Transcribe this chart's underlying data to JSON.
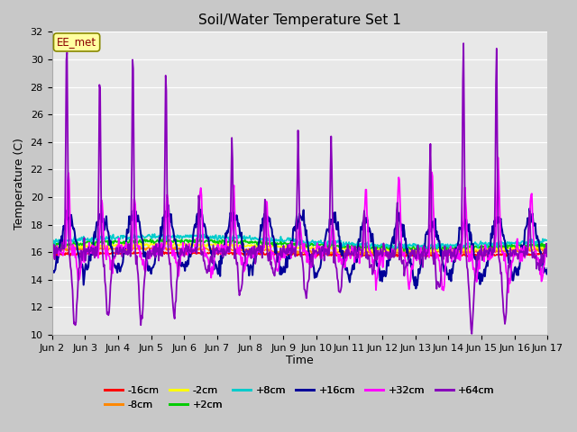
{
  "title": "Soil/Water Temperature Set 1",
  "xlabel": "Time",
  "ylabel": "Temperature (C)",
  "ylim": [
    10,
    32
  ],
  "yticks": [
    10,
    12,
    14,
    16,
    18,
    20,
    22,
    24,
    26,
    28,
    30,
    32
  ],
  "x_labels": [
    "Jun 2",
    "Jun 3",
    "Jun 4",
    "Jun 5",
    "Jun 6",
    "Jun 7",
    "Jun 8",
    "Jun 9",
    "Jun 10",
    "Jun 11",
    "Jun 12",
    "Jun 13",
    "Jun 14",
    "Jun 15",
    "Jun 16",
    "Jun 17"
  ],
  "n_days": 15,
  "legend_title": "EE_met",
  "series": [
    {
      "label": "-16cm",
      "color": "#ff0000"
    },
    {
      "label": "-8cm",
      "color": "#ff8800"
    },
    {
      "label": "-2cm",
      "color": "#ffff00"
    },
    {
      "label": "+2cm",
      "color": "#00cc00"
    },
    {
      "label": "+8cm",
      "color": "#00cccc"
    },
    {
      "label": "+16cm",
      "color": "#000099"
    },
    {
      "label": "+32cm",
      "color": "#ff00ff"
    },
    {
      "label": "+64cm",
      "color": "#8800bb"
    }
  ],
  "plot_bg_color": "#e8e8e8",
  "fig_bg_color": "#c8c8c8",
  "grid_color": "#ffffff"
}
